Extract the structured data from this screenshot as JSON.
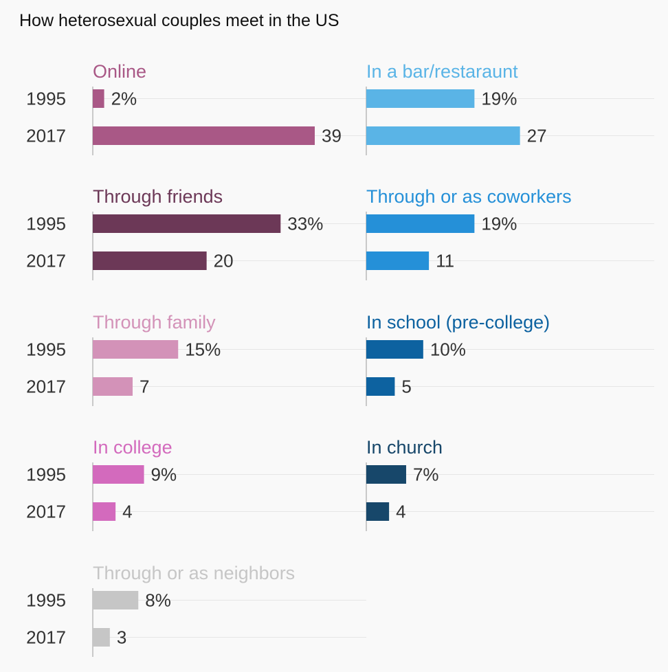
{
  "chart_data": {
    "type": "bar",
    "title": "How heterosexual couples meet in the US",
    "categories": [
      "1995",
      "2017"
    ],
    "xlim": [
      0,
      39
    ],
    "grid": true,
    "legend": "none",
    "panels": [
      {
        "name": "Online",
        "color": "#a95886",
        "values": [
          2,
          39
        ],
        "labels": [
          "2%",
          "39"
        ]
      },
      {
        "name": "In a bar/restaraunt",
        "color": "#5ab4e6",
        "values": [
          19,
          27
        ],
        "labels": [
          "19%",
          "27"
        ]
      },
      {
        "name": "Through friends",
        "color": "#6c3857",
        "values": [
          33,
          20
        ],
        "labels": [
          "33%",
          "20"
        ]
      },
      {
        "name": "Through or as coworkers",
        "color": "#2590d8",
        "values": [
          19,
          11
        ],
        "labels": [
          "19%",
          "11"
        ]
      },
      {
        "name": "Through family",
        "color": "#d392b8",
        "values": [
          15,
          7
        ],
        "labels": [
          "15%",
          "7"
        ]
      },
      {
        "name": "In school (pre-college)",
        "color": "#0d62a0",
        "values": [
          10,
          5
        ],
        "labels": [
          "10%",
          "5"
        ]
      },
      {
        "name": "In college",
        "color": "#d36abd",
        "values": [
          9,
          4
        ],
        "labels": [
          "9%",
          "4"
        ]
      },
      {
        "name": "In church",
        "color": "#17476a",
        "values": [
          7,
          4
        ],
        "labels": [
          "7%",
          "4"
        ]
      },
      {
        "name": "Through or as neighbors",
        "color": "#c6c6c6",
        "values": [
          8,
          3
        ],
        "labels": [
          "8%",
          "3"
        ]
      }
    ]
  }
}
